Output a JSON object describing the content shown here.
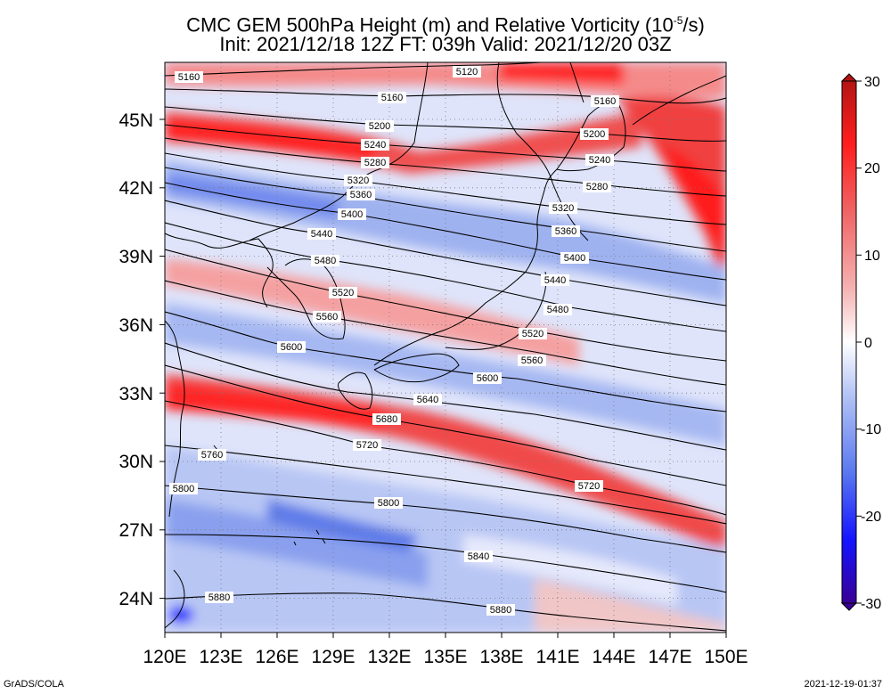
{
  "title": {
    "line1_prefix": "CMC GEM 500hPa Height (m) and Relative Vorticity (10",
    "line1_sup": "-5",
    "line1_suffix": "/s)",
    "line2": "Init: 2021/12/18 12Z  FT: 039h  Valid: 2021/12/20 03Z"
  },
  "map": {
    "lon_range": [
      120,
      150
    ],
    "lat_range": [
      22.5,
      47.5
    ],
    "x_ticks": [
      "120E",
      "123E",
      "126E",
      "129E",
      "132E",
      "135E",
      "138E",
      "141E",
      "144E",
      "147E",
      "150E"
    ],
    "y_ticks": [
      "24N",
      "27N",
      "30N",
      "33N",
      "36N",
      "39N",
      "42N",
      "45N"
    ],
    "grid": "dotted",
    "contour_labels": [
      "5120",
      "5160",
      "5200",
      "5240",
      "5280",
      "5320",
      "5360",
      "5400",
      "5440",
      "5480",
      "5520",
      "5560",
      "5600",
      "5640",
      "5680",
      "5720",
      "5760",
      "5800",
      "5840",
      "5880"
    ]
  },
  "colorbar": {
    "ticks": [
      "30",
      "20",
      "10",
      "0",
      "-10",
      "-20",
      "-30"
    ],
    "range": [
      -30,
      30
    ],
    "colors": [
      "#3a0096",
      "#1414ff",
      "#5a78f0",
      "#a0b4f5",
      "#ffffff",
      "#f5a0a0",
      "#f06464",
      "#ff1e1e",
      "#b41414"
    ]
  },
  "footer": {
    "left": "GrADS/COLA",
    "right": "2021-12-19-01:37"
  }
}
